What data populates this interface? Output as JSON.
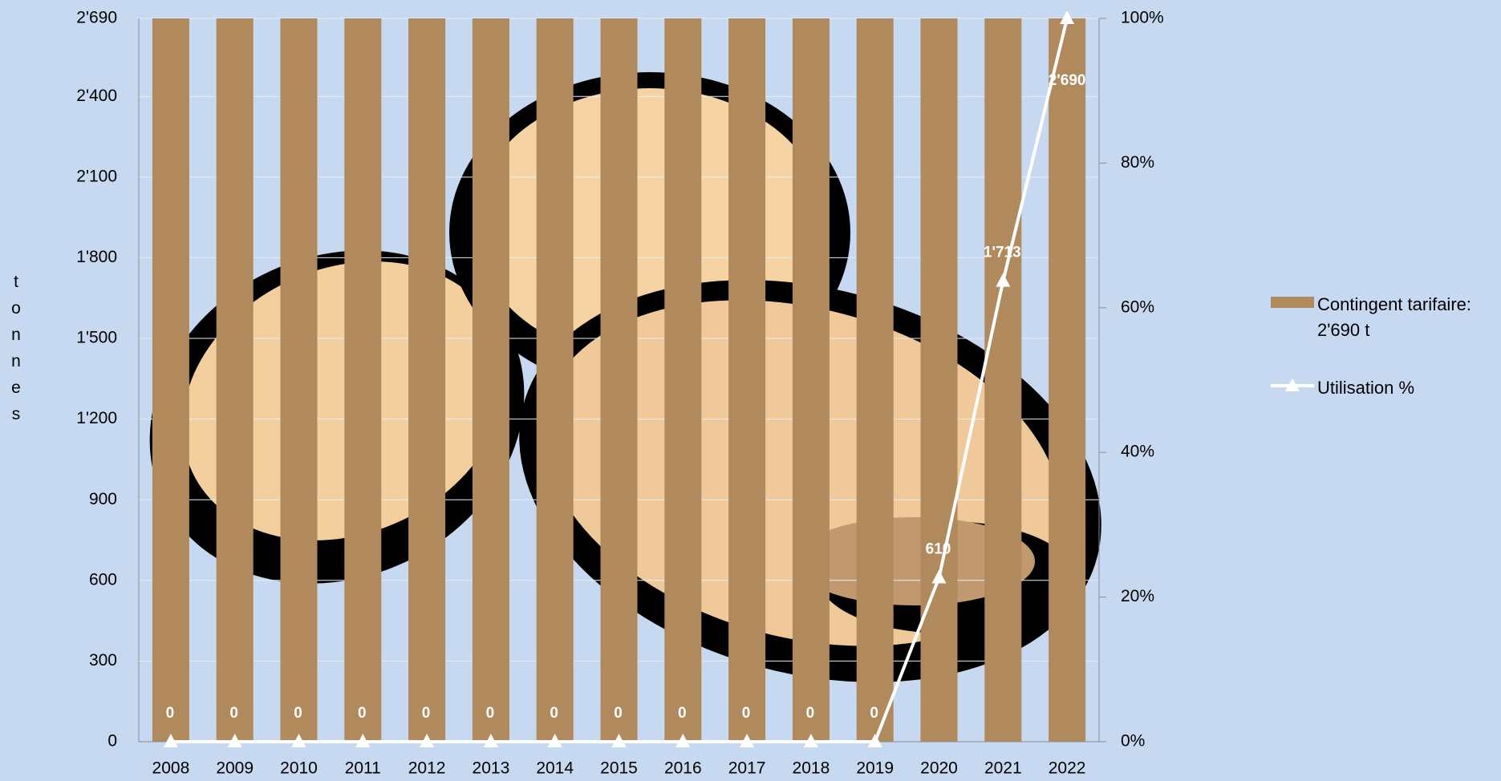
{
  "chart_data": {
    "type": "bar",
    "y_label": "tonnes",
    "categories": [
      "2008",
      "2009",
      "2010",
      "2011",
      "2012",
      "2013",
      "2014",
      "2015",
      "2016",
      "2017",
      "2018",
      "2019",
      "2020",
      "2021",
      "2022"
    ],
    "series": [
      {
        "name": "Contingent tarifaire: 2'690 t",
        "type": "bar",
        "color": "#b08a5c",
        "values": [
          2690,
          2690,
          2690,
          2690,
          2690,
          2690,
          2690,
          2690,
          2690,
          2690,
          2690,
          2690,
          2690,
          2690,
          2690
        ]
      },
      {
        "name": "Utilisation %",
        "type": "line",
        "color": "#ffffff",
        "values": [
          0,
          0,
          0,
          0,
          0,
          0,
          0,
          0,
          0,
          0,
          0,
          0,
          610,
          1713,
          2690
        ],
        "value_labels": [
          "0",
          "0",
          "0",
          "0",
          "0",
          "0",
          "0",
          "0",
          "0",
          "0",
          "0",
          "0",
          "610",
          "1'713",
          "2'690"
        ]
      }
    ],
    "ylim": [
      0,
      2690
    ],
    "yticks": [
      0,
      300,
      600,
      900,
      {
        "value": 1200,
        "label": "1'200"
      },
      {
        "value": 1500,
        "label": "1'500"
      },
      {
        "value": 1800,
        "label": "1'800"
      },
      {
        "value": 2100,
        "label": "2'100"
      },
      {
        "value": 2400,
        "label": "2'400"
      },
      {
        "value": 2690,
        "label": "2'690"
      }
    ],
    "y2lim": [
      0,
      100
    ],
    "y2ticks": [
      {
        "value": 0,
        "label": "0%"
      },
      {
        "value": 20,
        "label": "20%"
      },
      {
        "value": 40,
        "label": "40%"
      },
      {
        "value": 60,
        "label": "60%"
      },
      {
        "value": 80,
        "label": "80%"
      },
      {
        "value": 100,
        "label": "100%"
      }
    ],
    "grid": true,
    "legend": "right"
  }
}
